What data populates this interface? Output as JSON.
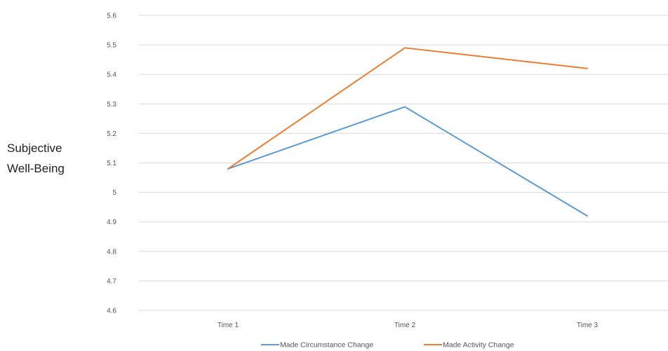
{
  "chart_data": {
    "type": "line",
    "title": "",
    "xlabel": "",
    "ylabel_lines": [
      "Subjective",
      "Well-Being"
    ],
    "categories": [
      "Time 1",
      "Time 2",
      "Time 3"
    ],
    "series": [
      {
        "name": "Made Circumstance Change",
        "color": "#5b9bd5",
        "values": [
          5.08,
          5.29,
          4.92
        ]
      },
      {
        "name": "Made Activity Change",
        "color": "#ed7d31",
        "values": [
          5.08,
          5.49,
          5.42
        ]
      }
    ],
    "ylim": [
      4.6,
      5.6
    ],
    "y_ticks": [
      "4.6",
      "4.7",
      "4.8",
      "4.9",
      "5",
      "5.1",
      "5.2",
      "5.3",
      "5.4",
      "5.5",
      "5.6"
    ],
    "grid": true,
    "legend_position": "bottom"
  }
}
